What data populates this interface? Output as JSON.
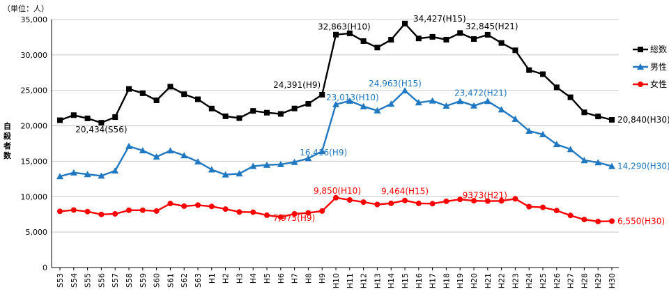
{
  "chart_data": {
    "type": "line",
    "unit_label": "（単位：人）",
    "ylabel": "自殺者数",
    "ylim": [
      0,
      35000
    ],
    "yticks": [
      0,
      5000,
      10000,
      15000,
      20000,
      25000,
      30000,
      35000
    ],
    "ytick_labels": [
      "0",
      "5,000",
      "10,000",
      "15,000",
      "20,000",
      "25,000",
      "30,000",
      "35,000"
    ],
    "grid": true,
    "legend_position": "right",
    "categories": [
      "S53",
      "S54",
      "S55",
      "S56",
      "S57",
      "S58",
      "S59",
      "S60",
      "S61",
      "S62",
      "S63",
      "H1",
      "H2",
      "H3",
      "H4",
      "H5",
      "H6",
      "H7",
      "H8",
      "H9",
      "H10",
      "H11",
      "H12",
      "H13",
      "H14",
      "H15",
      "H16",
      "H17",
      "H18",
      "H19",
      "H20",
      "H21",
      "H22",
      "H23",
      "H24",
      "H25",
      "H26",
      "H27",
      "H28",
      "H29",
      "H30"
    ],
    "series": [
      {
        "name": "総数",
        "color": "#000000",
        "marker": "square",
        "values": [
          20788,
          21503,
          21048,
          20434,
          21228,
          25202,
          24596,
          23599,
          25524,
          24460,
          23742,
          22436,
          21346,
          21084,
          22104,
          21851,
          21679,
          22445,
          23104,
          24391,
          32863,
          33048,
          31957,
          31042,
          32143,
          34427,
          32325,
          32552,
          32155,
          33093,
          32249,
          32845,
          31690,
          30651,
          27858,
          27283,
          25427,
          24025,
          21897,
          21321,
          20840
        ]
      },
      {
        "name": "男性",
        "color": "#1f78c1",
        "marker": "triangle",
        "values": [
          12859,
          13386,
          13155,
          12942,
          13654,
          17116,
          16508,
          15624,
          16497,
          15802,
          14934,
          13818,
          13102,
          13242,
          14296,
          14468,
          14560,
          14874,
          15393,
          16416,
          23013,
          23512,
          22727,
          22144,
          23080,
          24963,
          23272,
          23540,
          22813,
          23478,
          22831,
          23472,
          22283,
          20955,
          19273,
          18787,
          17386,
          16681,
          15121,
          14826,
          14290
        ]
      },
      {
        "name": "女性",
        "color": "#ff0000",
        "marker": "circle",
        "values": [
          7929,
          8117,
          7893,
          7492,
          7574,
          8086,
          8088,
          7975,
          9027,
          8658,
          8808,
          8618,
          8244,
          7842,
          7808,
          7383,
          7119,
          7571,
          7711,
          7975,
          9850,
          9536,
          9230,
          8898,
          9063,
          9464,
          9053,
          9012,
          9342,
          9615,
          9418,
          9373,
          9407,
          9696,
          8585,
          8496,
          8041,
          7344,
          6776,
          6495,
          6550
        ]
      }
    ],
    "annotations": [
      {
        "series": 0,
        "index": 3,
        "text": "20,434(S56)"
      },
      {
        "series": 0,
        "index": 19,
        "text": "24,391(H9)"
      },
      {
        "series": 0,
        "index": 20,
        "text": "32,863(H10)"
      },
      {
        "series": 0,
        "index": 25,
        "text": "34,427(H15)"
      },
      {
        "series": 0,
        "index": 31,
        "text": "32,845(H21)"
      },
      {
        "series": 0,
        "index": 40,
        "text": "20,840(H30)"
      },
      {
        "series": 1,
        "index": 19,
        "text": "16,416(H9)"
      },
      {
        "series": 1,
        "index": 20,
        "text": "23,013(H10)"
      },
      {
        "series": 1,
        "index": 25,
        "text": "24,963(H15)"
      },
      {
        "series": 1,
        "index": 31,
        "text": "23,472(H21)"
      },
      {
        "series": 1,
        "index": 40,
        "text": "14,290(H30)"
      },
      {
        "series": 2,
        "index": 19,
        "text": "7,975(H9)"
      },
      {
        "series": 2,
        "index": 20,
        "text": "9,850(H10)"
      },
      {
        "series": 2,
        "index": 25,
        "text": "9,464(H15)"
      },
      {
        "series": 2,
        "index": 31,
        "text": "9373(H21)"
      },
      {
        "series": 2,
        "index": 40,
        "text": "6,550(H30)"
      }
    ]
  }
}
